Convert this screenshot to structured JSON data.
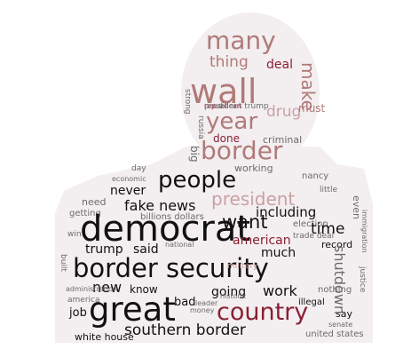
{
  "colors": {
    "dark": "#111111",
    "rose": "#b07a78",
    "pink": "#c9a1a5",
    "crimson": "#8a2035",
    "gray": "#6b6b6b",
    "silhouette": "#f3eef0"
  },
  "words": {
    "many": "many",
    "wall": "wall",
    "year": "year",
    "border_head": "border",
    "thing": "thing",
    "deal": "deal",
    "drug": "drug",
    "must": "must",
    "make": "make",
    "done": "done",
    "working": "working",
    "criminal": "criminal",
    "people": "people",
    "president": "president",
    "president_trump": "president trump",
    "republican": "republican",
    "fake_news": "fake news",
    "never": "never",
    "billions_dollars": "billions dollars",
    "democrat": "democrat",
    "time": "time",
    "want": "want",
    "including": "including",
    "american": "american",
    "much": "much",
    "trump": "trump",
    "said": "said",
    "border_security": "border security",
    "new": "new",
    "know": "know",
    "going": "going",
    "work": "work",
    "bad": "bad",
    "great": "great",
    "country": "country",
    "job": "job",
    "southern_border": "southern border",
    "white_house": "white house",
    "united_states": "united states",
    "shutdown": "shutdown",
    "record": "record",
    "election": "election",
    "trade_deal": "trade deal",
    "nancy": "nancy",
    "day": "day",
    "economic": "economic",
    "need": "need",
    "getting": "getting",
    "administration": "administration",
    "america": "america",
    "money": "money",
    "military": "military",
    "nothing": "nothing",
    "illegal": "illegal",
    "say": "say",
    "big": "big",
    "strong": "strong",
    "russia": "russia",
    "even": "even",
    "national": "national",
    "leader": "leader",
    "historic": "historic",
    "senate": "senate",
    "built": "built",
    "little": "little",
    "win": "win",
    "justice": "justice",
    "immigration": "immigration"
  }
}
